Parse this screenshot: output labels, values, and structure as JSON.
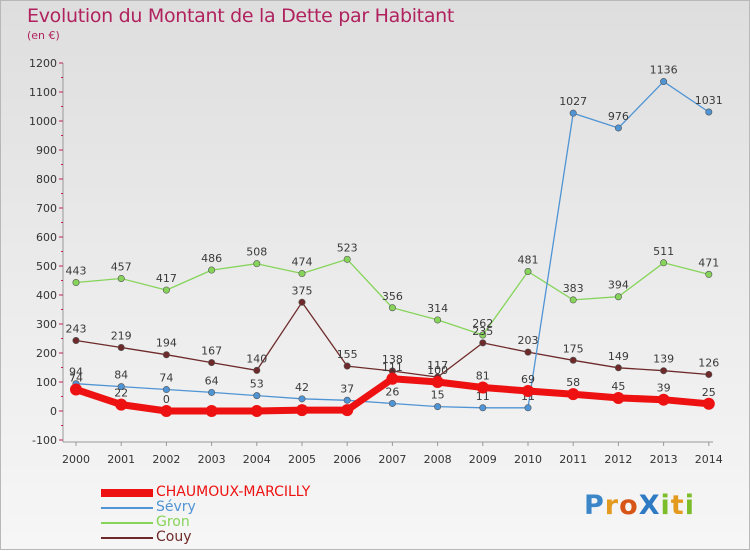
{
  "title": "Evolution du Montant de la Dette par Habitant",
  "unit_label": "(en €)",
  "chart_data": {
    "type": "line",
    "x": [
      "2000",
      "2001",
      "2002",
      "2003",
      "2004",
      "2005",
      "2006",
      "2007",
      "2008",
      "2009",
      "2010",
      "2011",
      "2012",
      "2013",
      "2014"
    ],
    "ylim": [
      -100,
      1200
    ],
    "yticks": [
      -100,
      0,
      100,
      200,
      300,
      400,
      500,
      600,
      700,
      800,
      900,
      1000,
      1100,
      1200
    ],
    "grid": false,
    "series": [
      {
        "name": "Gron",
        "color": "#86d45a",
        "values": [
          443,
          457,
          417,
          486,
          508,
          474,
          523,
          356,
          314,
          262,
          481,
          383,
          394,
          511,
          471
        ],
        "labels": [
          "443",
          "457",
          "417",
          "486",
          "508",
          "474",
          "523",
          "356",
          "314",
          "262",
          "481",
          "383",
          "394",
          "511",
          "471"
        ]
      },
      {
        "name": "Couy",
        "color": "#6e2a2a",
        "values": [
          243,
          219,
          194,
          167,
          140,
          375,
          155,
          138,
          117,
          235,
          203,
          175,
          149,
          139,
          126
        ],
        "labels": [
          "243",
          "219",
          "194",
          "167",
          "140",
          "375",
          "155",
          "138",
          "117",
          "235",
          "203",
          "175",
          "149",
          "139",
          "126"
        ]
      },
      {
        "name": "Sévry",
        "color": "#4f94d4",
        "values": [
          94,
          84,
          74,
          64,
          53,
          42,
          37,
          26,
          15,
          11,
          11,
          1027,
          976,
          1136,
          1031
        ],
        "labels": [
          "94",
          "84",
          "74",
          "64",
          "53",
          "42",
          "37",
          "26",
          "15",
          "11",
          "11",
          "1027",
          "976",
          "1136",
          "1031"
        ]
      },
      {
        "name": "CHAUMOUX-MARCILLY",
        "color": "#ee1111",
        "values": [
          74,
          22,
          0,
          0,
          0,
          3,
          3,
          111,
          100,
          81,
          69,
          58,
          45,
          39,
          25
        ],
        "labels": [
          "74",
          "22",
          "0",
          "",
          "",
          "",
          "",
          "111",
          "100",
          "81",
          "69",
          "58",
          "45",
          "39",
          "25"
        ]
      }
    ],
    "legend": [
      {
        "name": "CHAUMOUX-MARCILLY",
        "color": "#ee1111"
      },
      {
        "name": "Sévry",
        "color": "#4f94d4"
      },
      {
        "name": "Gron",
        "color": "#86d45a"
      },
      {
        "name": "Couy",
        "color": "#6e2a2a"
      }
    ]
  },
  "logo": {
    "text": "ProXiti",
    "letters": [
      {
        "ch": "P",
        "color": "#3b86c8"
      },
      {
        "ch": "r",
        "color": "#e39a1e"
      },
      {
        "ch": "o",
        "color": "#d85518"
      },
      {
        "ch": "X",
        "color": "#2e7bc4"
      },
      {
        "ch": "i",
        "color": "#7cbd2a"
      },
      {
        "ch": "t",
        "color": "#e39a1e"
      },
      {
        "ch": "i",
        "color": "#7cbd2a"
      }
    ]
  }
}
